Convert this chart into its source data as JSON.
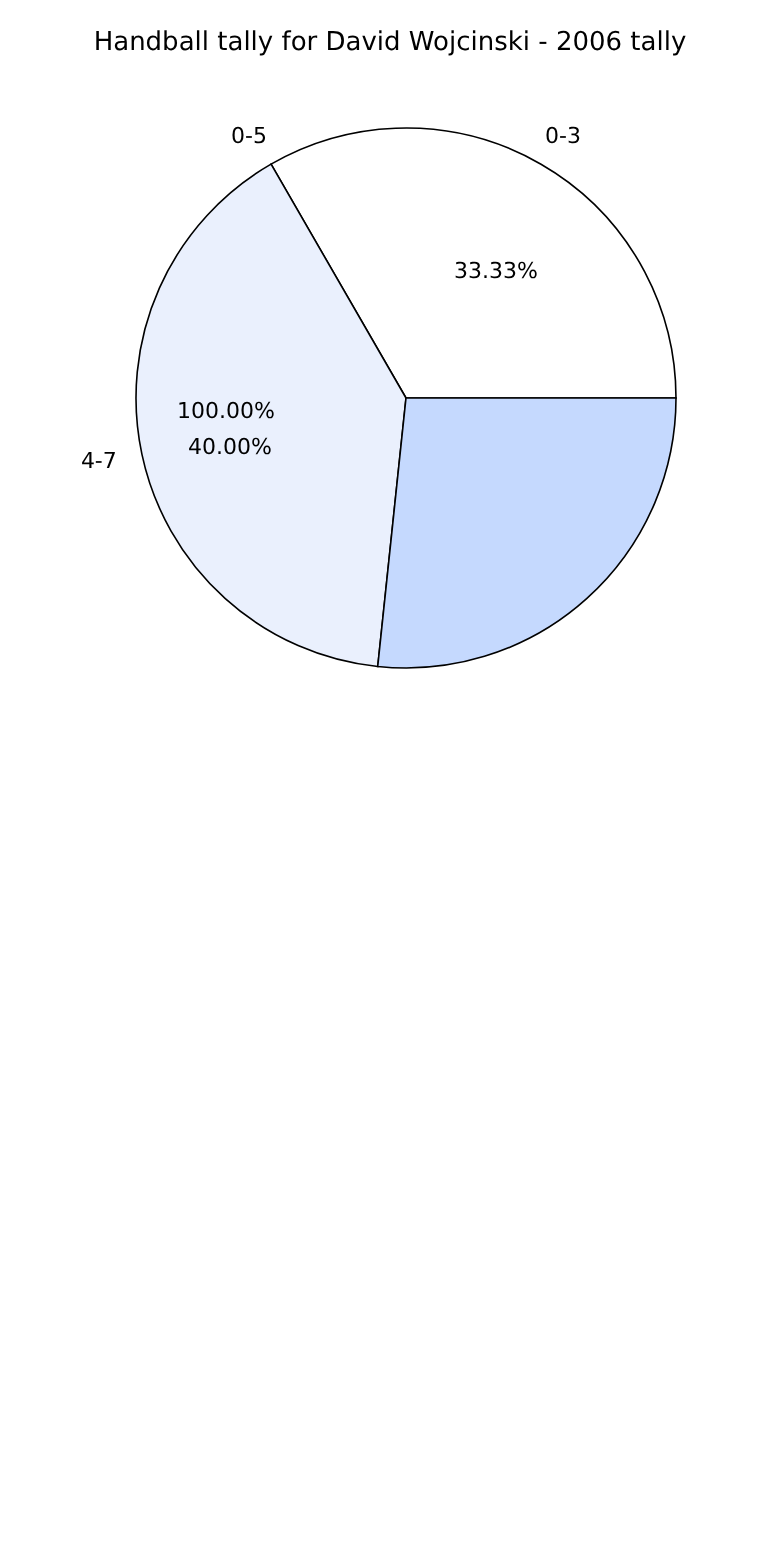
{
  "chart_data": {
    "type": "pie",
    "title": "Handball tally for David Wojcinski - 2006 tally",
    "categories": [
      "0-3",
      "0-5",
      "4-7",
      null
    ],
    "values": [
      33.33,
      0,
      40,
      26.67
    ],
    "annotations": [
      "33.33%",
      "100.00%",
      "40.00%"
    ],
    "colors": [
      "#ffffff",
      "#ffffff",
      "#eaf0fd",
      "#c5d9fe"
    ]
  }
}
